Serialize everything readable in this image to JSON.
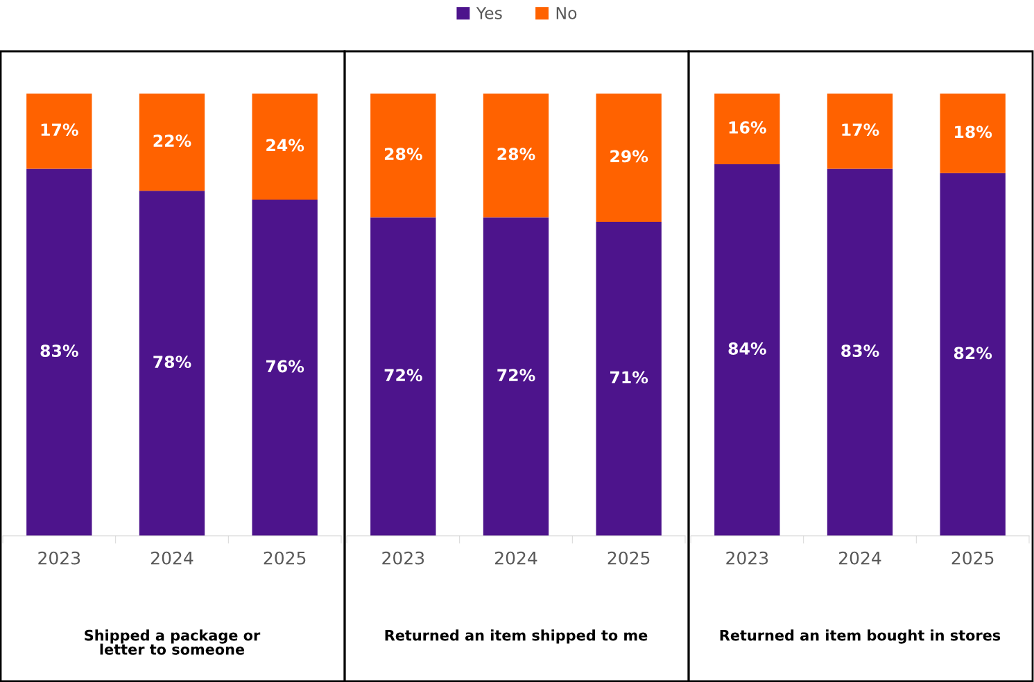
{
  "chart_data": [
    {
      "type": "bar",
      "stacked": true,
      "xlabel": "Shipped a package or\nletter to someone",
      "categories": [
        "2023",
        "2024",
        "2025"
      ],
      "tick_labels": "x",
      "legend": "top",
      "series": [
        {
          "name": "Yes",
          "color": "#4d148c",
          "values": [
            83,
            78,
            76
          ],
          "value_labels": [
            "83%",
            "78%",
            "76%"
          ]
        },
        {
          "name": "No",
          "color": "#ff6200",
          "values": [
            17,
            22,
            24
          ],
          "value_labels": [
            "17%",
            "22%",
            "24%"
          ]
        }
      ]
    },
    {
      "type": "bar",
      "stacked": true,
      "xlabel": "Returned an item shipped to me",
      "categories": [
        "2023",
        "2024",
        "2025"
      ],
      "tick_labels": "x",
      "series": [
        {
          "color": "#4d148c",
          "values": [
            72,
            72,
            71
          ],
          "value_labels": [
            "72%",
            "72%",
            "71%"
          ]
        },
        {
          "color": "#ff6200",
          "values": [
            28,
            28,
            29
          ],
          "value_labels": [
            "28%",
            "28%",
            "29%"
          ]
        }
      ]
    },
    {
      "type": "bar",
      "stacked": true,
      "xlabel": "Returned an item bought in stores",
      "categories": [
        "2023",
        "2024",
        "2025"
      ],
      "tick_labels": "x",
      "series": [
        {
          "color": "#4d148c",
          "values": [
            84,
            83,
            82
          ],
          "value_labels": [
            "84%",
            "83%",
            "82%"
          ]
        },
        {
          "color": "#ff6200",
          "values": [
            16,
            17,
            18
          ],
          "value_labels": [
            "16%",
            "17%",
            "18%"
          ]
        }
      ]
    }
  ]
}
